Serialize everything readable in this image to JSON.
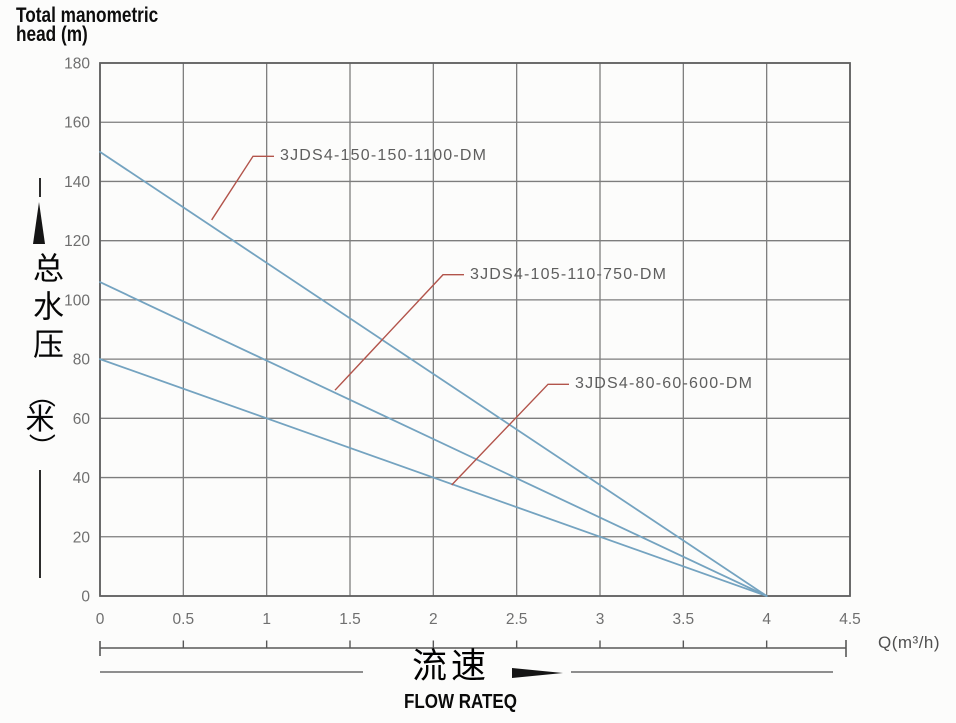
{
  "title": {
    "line1": "Total manometric",
    "line2": "head (m)"
  },
  "axes": {
    "y_label_cn": "总水压",
    "y_label_cn_unit": "（米）",
    "x_label_cn": "流速",
    "x_label_en": "FLOW RATEQ",
    "x_unit": "Q(m³/h)"
  },
  "chart_data": {
    "type": "line",
    "title": "Pump total manometric head vs flow rate",
    "xlabel": "Q(m³/h)",
    "ylabel": "Total manometric head (m)",
    "xlim": [
      0,
      4.5
    ],
    "ylim": [
      0,
      180
    ],
    "x_ticks": [
      "0",
      "0.5",
      "1",
      "1.5",
      "2",
      "2.5",
      "3",
      "3.5",
      "4",
      "4.5"
    ],
    "y_ticks": [
      "0",
      "20",
      "40",
      "60",
      "80",
      "100",
      "120",
      "140",
      "160",
      "180"
    ],
    "grid": true,
    "legend_position": "inline-annotations",
    "series": [
      {
        "name": "3JDS4-150-150-1100-DM",
        "x": [
          0,
          4
        ],
        "y": [
          150,
          0
        ]
      },
      {
        "name": "3JDS4-105-110-750-DM",
        "x": [
          0,
          4
        ],
        "y": [
          106,
          0
        ]
      },
      {
        "name": "3JDS4-80-60-600-DM",
        "x": [
          0,
          4
        ],
        "y": [
          80,
          0
        ]
      }
    ],
    "annotations": [
      {
        "series": 0,
        "text": "3JDS4-150-150-1100-DM",
        "label_at": [
          1.08,
          148.5
        ],
        "touch": [
          0.67,
          127
        ]
      },
      {
        "series": 1,
        "text": "3JDS4-105-110-750-DM",
        "label_at": [
          2.22,
          108.5
        ],
        "touch": [
          1.41,
          69.5
        ]
      },
      {
        "series": 2,
        "text": "3JDS4-80-60-600-DM",
        "label_at": [
          2.85,
          71.5
        ],
        "touch": [
          2.11,
          37.5
        ]
      }
    ]
  },
  "colors": {
    "curve": "#74a3c0",
    "grid": "#7d7d7d",
    "border": "#5f5f5f",
    "leader": "#b2544b",
    "tick_text": "#6f6f6f",
    "annotation_text": "#5e5e5e",
    "ruler": "#585858",
    "ink": "#0a0a0a"
  }
}
